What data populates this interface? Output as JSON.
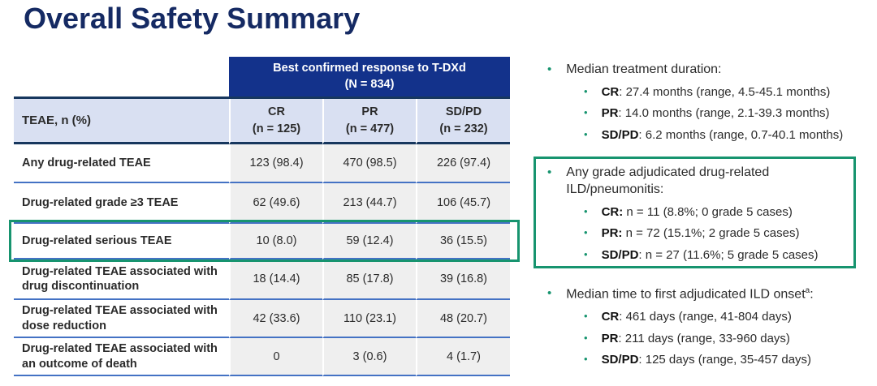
{
  "slide": {
    "title": "Overall Safety Summary"
  },
  "table": {
    "span_header": {
      "line1": "Best confirmed response to T-DXd",
      "line2": "(N = 834)"
    },
    "columns": {
      "label": "TEAE, n (%)",
      "cr": {
        "line1": "CR",
        "line2": "(n = 125)"
      },
      "pr": {
        "line1": "PR",
        "line2": "(n = 477)"
      },
      "sdpd": {
        "line1": "SD/PD",
        "line2": "(n = 232)"
      }
    },
    "rows": [
      {
        "label": "Any drug-related TEAE",
        "cr": "123 (98.4)",
        "pr": "470 (98.5)",
        "sdpd": "226 (97.4)",
        "highlighted": false
      },
      {
        "label": "Drug-related grade ≥3 TEAE",
        "cr": "62 (49.6)",
        "pr": "213 (44.7)",
        "sdpd": "106 (45.7)",
        "highlighted": false
      },
      {
        "label": "Drug-related serious TEAE",
        "cr": "10 (8.0)",
        "pr": "59 (12.4)",
        "sdpd": "36 (15.5)",
        "highlighted": true
      },
      {
        "label": "Drug-related TEAE associated with drug discontinuation",
        "cr": "18 (14.4)",
        "pr": "85 (17.8)",
        "sdpd": "39 (16.8)",
        "highlighted": false
      },
      {
        "label": "Drug-related TEAE associated with dose reduction",
        "cr": "42 (33.6)",
        "pr": "110 (23.1)",
        "sdpd": "48 (20.7)",
        "highlighted": false
      },
      {
        "label": "Drug-related TEAE associated with an outcome of death",
        "cr": "0",
        "pr": "3 (0.6)",
        "sdpd": "4 (1.7)",
        "highlighted": false
      }
    ]
  },
  "bullets": {
    "bullet_glyph": "•",
    "treatment_duration": {
      "head": "Median treatment duration:",
      "items": [
        {
          "label": "CR",
          "text": ": 27.4 months (range, 4.5-45.1 months)"
        },
        {
          "label": "PR",
          "text": ": 14.0 months (range, 2.1-39.3 months)"
        },
        {
          "label": "SD/PD",
          "text": ": 6.2 months (range, 0.7-40.1 months)"
        }
      ]
    },
    "ild_pneumonitis": {
      "head": "Any grade adjudicated drug-related ILD/pneumonitis:",
      "items": [
        {
          "label": "CR:",
          "text": " n = 11 (8.8%; 0 grade 5 cases)"
        },
        {
          "label": "PR:",
          "text": " n = 72 (15.1%; 2 grade 5 cases)"
        },
        {
          "label": "SD/PD",
          "text": ": n = 27 (11.6%; 5 grade 5 cases)"
        }
      ]
    },
    "ild_onset": {
      "head": "Median time to first adjudicated ILD onset",
      "head_sup": "a",
      "head_suffix": ":",
      "items": [
        {
          "label": "CR",
          "text": ": 461 days (range, 41-804 days)"
        },
        {
          "label": "PR",
          "text": ": 211 days (range, 33-960 days)"
        },
        {
          "label": "SD/PD",
          "text": ": 125 days (range, 35-457 days)"
        }
      ]
    }
  },
  "colors": {
    "header_blue": "#13328B",
    "header_lavender": "#D9E0F2",
    "cell_gray": "#EFEFEF",
    "row_line": "#4472C4",
    "header_line": "#17375E",
    "highlight_green": "#17946F",
    "title_color": "#152A63",
    "text_color": "#2B2B2B"
  }
}
